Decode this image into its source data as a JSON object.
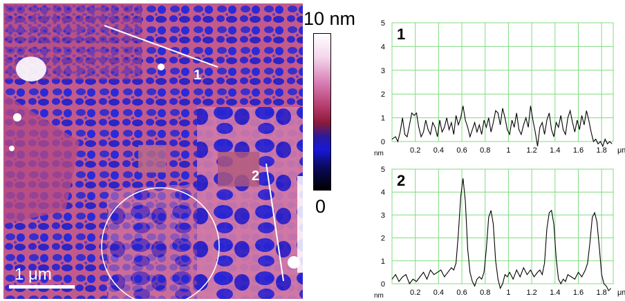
{
  "image": {
    "scale_bar_label": "1 μm",
    "line_labels": [
      "1",
      "2"
    ]
  },
  "colorbar": {
    "max_label": "10 nm",
    "min_label": "0"
  },
  "chart_data": [
    {
      "type": "line",
      "panel_label": "1",
      "xlabel": "μm",
      "ylabel": "nm",
      "xlim": [
        0,
        1.9
      ],
      "ylim": [
        0,
        5
      ],
      "x_ticks": [
        "0.2",
        "0.4",
        "0.6",
        "0.8",
        "1",
        "1.2",
        "1.4",
        "1.6",
        "1.8"
      ],
      "y_ticks": [
        "0",
        "1",
        "2",
        "3",
        "4",
        "5"
      ],
      "grid": true,
      "series": [
        {
          "x": [
            0.0,
            0.03,
            0.05,
            0.07,
            0.09,
            0.11,
            0.13,
            0.15,
            0.17,
            0.19,
            0.21,
            0.23,
            0.25,
            0.27,
            0.29,
            0.31,
            0.33,
            0.35,
            0.37,
            0.39,
            0.41,
            0.43,
            0.45,
            0.47,
            0.49,
            0.51,
            0.53,
            0.55,
            0.57,
            0.59,
            0.61,
            0.63,
            0.65,
            0.67,
            0.69,
            0.71,
            0.73,
            0.75,
            0.77,
            0.79,
            0.81,
            0.83,
            0.85,
            0.87,
            0.89,
            0.91,
            0.93,
            0.95,
            0.97,
            0.99,
            1.01,
            1.03,
            1.05,
            1.07,
            1.09,
            1.11,
            1.13,
            1.15,
            1.17,
            1.19,
            1.21,
            1.23,
            1.25,
            1.27,
            1.29,
            1.31,
            1.33,
            1.35,
            1.37,
            1.39,
            1.41,
            1.43,
            1.45,
            1.47,
            1.49,
            1.51,
            1.53,
            1.55,
            1.57,
            1.59,
            1.61,
            1.63,
            1.65,
            1.67,
            1.69,
            1.71,
            1.73,
            1.75,
            1.77,
            1.79,
            1.81,
            1.83,
            1.85,
            1.87,
            1.89
          ],
          "y": [
            0.1,
            0.2,
            0.0,
            0.4,
            1.0,
            0.3,
            0.2,
            0.7,
            1.2,
            1.1,
            1.2,
            0.6,
            0.2,
            0.4,
            0.9,
            0.5,
            0.3,
            0.8,
            0.6,
            0.2,
            0.9,
            0.4,
            0.6,
            1.0,
            0.5,
            0.8,
            0.3,
            1.1,
            0.7,
            1.0,
            1.5,
            0.9,
            0.6,
            0.2,
            0.5,
            0.8,
            0.4,
            0.7,
            0.3,
            0.9,
            0.6,
            1.0,
            0.4,
            0.8,
            1.3,
            1.2,
            0.7,
            1.4,
            1.0,
            0.5,
            0.3,
            0.9,
            0.6,
            1.2,
            0.5,
            0.3,
            0.7,
            1.0,
            0.6,
            1.5,
            0.9,
            0.4,
            -0.2,
            0.6,
            0.8,
            0.3,
            0.9,
            1.2,
            0.5,
            0.2,
            0.8,
            0.6,
            1.1,
            0.5,
            0.3,
            1.0,
            1.3,
            0.8,
            0.4,
            0.9,
            0.5,
            1.1,
            0.7,
            1.3,
            0.9,
            0.4,
            0.0,
            0.1,
            -0.1,
            0.0,
            -0.2,
            0.1,
            -0.1,
            0.0,
            -0.1
          ]
        }
      ]
    },
    {
      "type": "line",
      "panel_label": "2",
      "xlabel": "μm",
      "ylabel": "nm",
      "xlim": [
        0,
        1.9
      ],
      "ylim": [
        0,
        5
      ],
      "x_ticks": [
        "0.2",
        "0.4",
        "0.6",
        "0.8",
        "1",
        "1.2",
        "1.4",
        "1.6",
        "1.8"
      ],
      "y_ticks": [
        "0",
        "1",
        "2",
        "3",
        "4",
        "5"
      ],
      "grid": true,
      "series": [
        {
          "x": [
            0.0,
            0.03,
            0.06,
            0.09,
            0.12,
            0.15,
            0.18,
            0.21,
            0.24,
            0.27,
            0.3,
            0.33,
            0.36,
            0.39,
            0.42,
            0.45,
            0.48,
            0.51,
            0.53,
            0.55,
            0.57,
            0.59,
            0.61,
            0.63,
            0.65,
            0.67,
            0.69,
            0.71,
            0.73,
            0.75,
            0.77,
            0.79,
            0.81,
            0.83,
            0.85,
            0.87,
            0.89,
            0.91,
            0.93,
            0.95,
            0.97,
            0.99,
            1.01,
            1.04,
            1.07,
            1.1,
            1.13,
            1.16,
            1.19,
            1.22,
            1.25,
            1.27,
            1.29,
            1.31,
            1.33,
            1.35,
            1.37,
            1.39,
            1.41,
            1.43,
            1.45,
            1.47,
            1.49,
            1.51,
            1.54,
            1.57,
            1.6,
            1.63,
            1.66,
            1.68,
            1.7,
            1.72,
            1.74,
            1.76,
            1.78,
            1.8,
            1.82,
            1.84,
            1.86,
            1.88
          ],
          "y": [
            0.2,
            0.4,
            0.1,
            0.3,
            0.4,
            0.0,
            0.2,
            0.1,
            0.3,
            0.5,
            0.2,
            0.6,
            0.4,
            0.5,
            0.6,
            0.3,
            0.5,
            0.7,
            0.6,
            0.9,
            2.2,
            3.8,
            4.6,
            3.6,
            1.5,
            0.5,
            0.1,
            -0.1,
            0.2,
            0.3,
            0.2,
            0.5,
            1.5,
            2.9,
            3.2,
            2.6,
            1.0,
            0.2,
            -0.2,
            0.0,
            0.4,
            0.3,
            0.5,
            0.2,
            0.6,
            0.3,
            0.7,
            0.4,
            0.6,
            0.3,
            0.5,
            0.6,
            0.4,
            0.9,
            2.4,
            3.1,
            3.2,
            2.6,
            1.1,
            0.2,
            0.0,
            0.2,
            0.1,
            0.4,
            0.3,
            0.2,
            0.5,
            0.3,
            0.6,
            0.9,
            1.8,
            2.9,
            3.1,
            2.7,
            1.6,
            0.4,
            0.0,
            -0.1,
            -0.3,
            -0.2
          ]
        }
      ]
    }
  ]
}
